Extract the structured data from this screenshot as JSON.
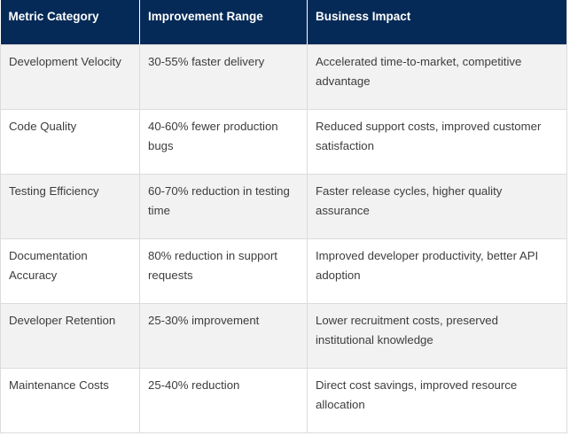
{
  "table": {
    "headers": [
      "Metric Category",
      "Improvement Range",
      "Business Impact"
    ],
    "rows": [
      [
        "Development Velocity",
        "30-55% faster delivery",
        "Accelerated time-to-market, competitive advantage"
      ],
      [
        "Code Quality",
        "40-60% fewer production bugs",
        "Reduced support costs, improved customer satisfaction"
      ],
      [
        "Testing Efficiency",
        "60-70% reduction in testing time",
        "Faster release cycles, higher quality assurance"
      ],
      [
        "Documentation Accuracy",
        "80% reduction in support requests",
        "Improved developer productivity, better API adoption"
      ],
      [
        "Developer Retention",
        "25-30% improvement",
        "Lower recruitment costs, preserved institutional knowledge"
      ],
      [
        "Maintenance Costs",
        "25-40% reduction",
        "Direct cost savings, improved resource allocation"
      ]
    ]
  },
  "colors": {
    "header_bg": "#052a57",
    "header_text": "#ffffff",
    "stripe_bg": "#f2f2f2",
    "border": "#dcdcdc",
    "body_text": "#3d3d3d"
  }
}
